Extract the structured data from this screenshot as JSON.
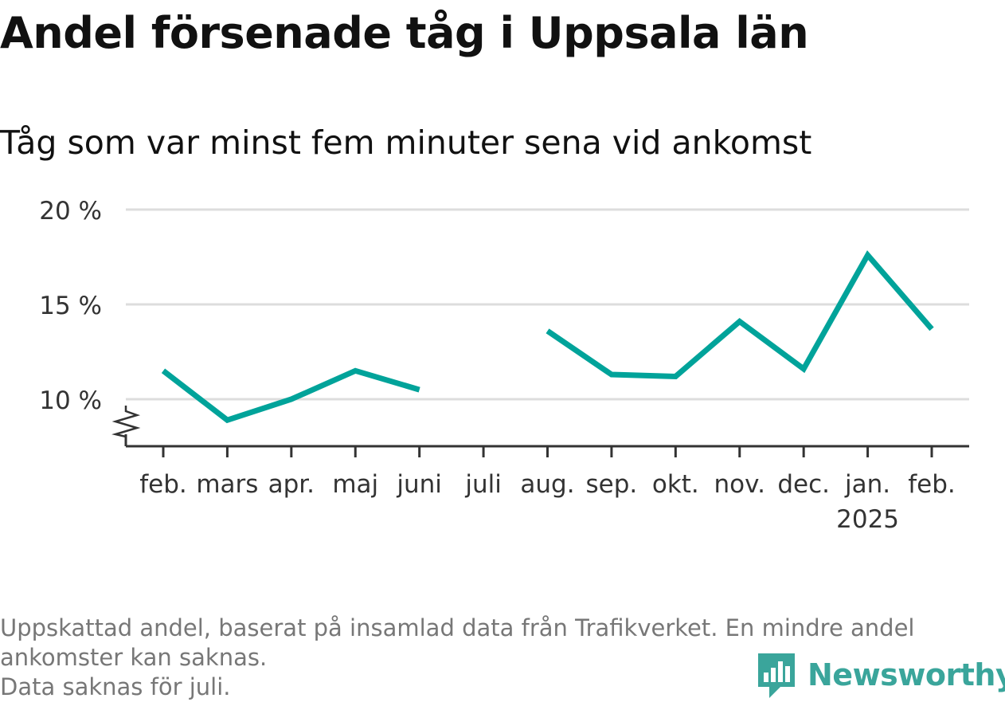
{
  "header": {
    "title": "Andel försenade tåg i Uppsala län",
    "subtitle": "Tåg som var minst fem minuter sena vid ankomst"
  },
  "chart_data": {
    "type": "line",
    "categories": [
      "feb.",
      "mars",
      "apr.",
      "maj",
      "juni",
      "juli",
      "aug.",
      "sep.",
      "okt.",
      "nov.",
      "dec.",
      "jan.",
      "feb."
    ],
    "year_label": "2025",
    "year_label_index": 11,
    "series": [
      {
        "values": [
          11.5,
          8.9,
          10.0,
          11.5,
          10.5,
          null,
          13.6,
          11.3,
          11.2,
          14.1,
          11.6,
          17.6,
          13.7
        ],
        "color": "#00a39a"
      }
    ],
    "y_ticks": [
      10,
      15,
      20
    ],
    "y_tick_labels": [
      "10 %",
      "15 %",
      "20 %"
    ],
    "ylim": [
      7.5,
      20
    ],
    "grid": true,
    "axis_break": true
  },
  "footnote": {
    "lines": [
      "Uppskattad andel, baserat på insamlad data från Trafikverket. En mindre andel",
      "ankomster kan saknas.",
      "Data saknas för juli."
    ]
  },
  "brand": {
    "name": "Newsworthy",
    "color": "#3aa59b",
    "icon": "newsworthy-logo-icon"
  }
}
